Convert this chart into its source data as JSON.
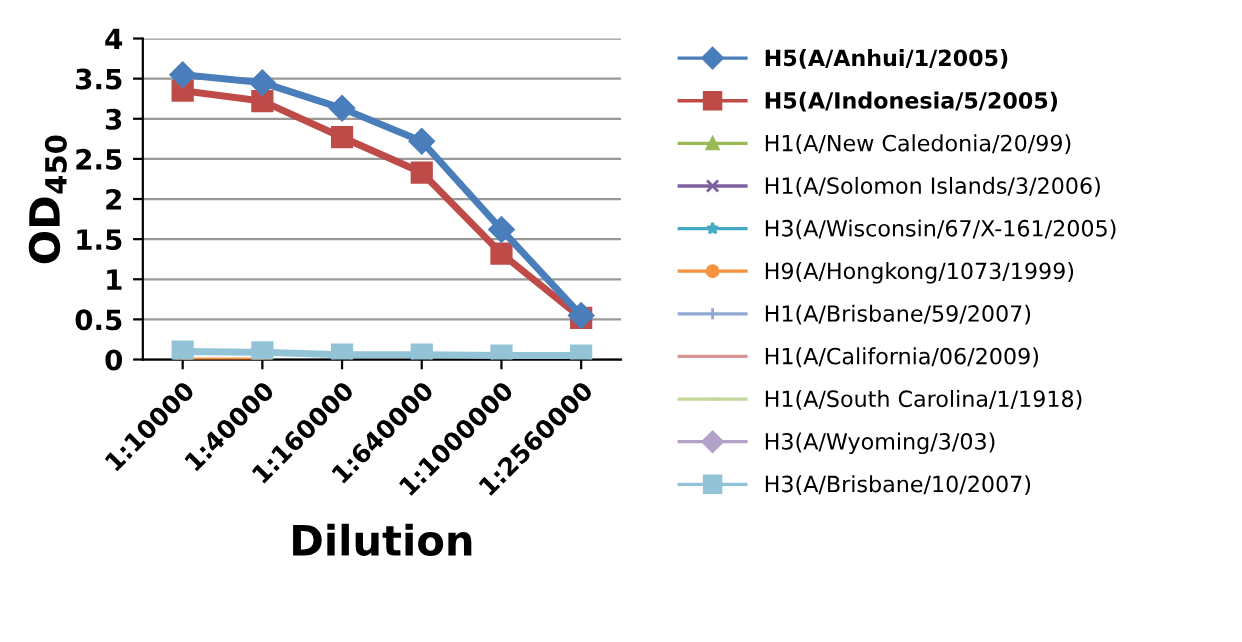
{
  "chart_data": {
    "type": "line",
    "xlabel": "Dilution",
    "ylabel": "OD$_{450}$",
    "categories": [
      "1:10000",
      "1:40000",
      "1:160000",
      "1:640000",
      "1:1000000",
      "1:2560000"
    ],
    "ylim": [
      0,
      4
    ],
    "yticks": [
      0,
      0.5,
      1,
      1.5,
      2,
      2.5,
      3,
      3.5,
      4
    ],
    "grid": "y",
    "legend": "right",
    "series": [
      {
        "name": "H5(A/Anhui/1/2005)",
        "color": "#4a7ebb",
        "marker": "diamond",
        "values": [
          3.55,
          3.45,
          3.13,
          2.72,
          1.62,
          0.55
        ]
      },
      {
        "name": "H5(A/Indonesia/5/2005)",
        "color": "#be4b48",
        "marker": "square",
        "values": [
          3.35,
          3.22,
          2.77,
          2.33,
          1.32,
          0.52
        ]
      },
      {
        "name": "H1(A/New Caledonia/20/99)",
        "color": "#98b954",
        "marker": "triangle",
        "values": [
          null,
          null,
          null,
          null,
          null,
          null
        ]
      },
      {
        "name": "H1(A/Solomon Islands/3/2006)",
        "color": "#7d60a0",
        "marker": "cross",
        "values": [
          null,
          null,
          null,
          null,
          null,
          null
        ]
      },
      {
        "name": "H3(A/Wisconsin/67/X-161/2005)",
        "color": "#46aac5",
        "marker": "star",
        "values": [
          null,
          null,
          null,
          null,
          null,
          null
        ]
      },
      {
        "name": "H9(A/Hongkong/1073/1999)",
        "color": "#f69240",
        "marker": "circle",
        "values": [
          0.0,
          0.0,
          null,
          null,
          null,
          null
        ]
      },
      {
        "name": "H1(A/Brisbane/59/2007)",
        "color": "#8fa9d3",
        "marker": "plus",
        "values": [
          null,
          null,
          null,
          null,
          null,
          null
        ]
      },
      {
        "name": "H1(A/California/06/2009)",
        "color": "#d99694",
        "marker": "dash",
        "values": [
          null,
          null,
          null,
          null,
          null,
          null
        ]
      },
      {
        "name": "H1(A/South Carolina/1/1918)",
        "color": "#c3d69b",
        "marker": "dash",
        "values": [
          null,
          null,
          null,
          null,
          null,
          null
        ]
      },
      {
        "name": "H3(A/Wyoming/3/03)",
        "color": "#b3a2c7",
        "marker": "diamond",
        "values": [
          null,
          null,
          null,
          null,
          null,
          null
        ]
      },
      {
        "name": "H3(A/Brisbane/10/2007)",
        "color": "#93c3d7",
        "marker": "square",
        "values": [
          0.1,
          0.09,
          0.06,
          0.06,
          0.05,
          0.05
        ]
      }
    ]
  }
}
